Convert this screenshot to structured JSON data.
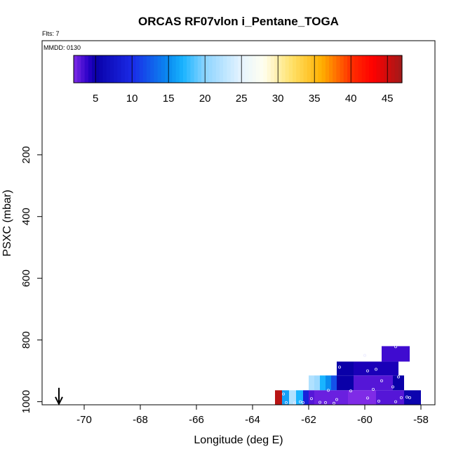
{
  "chart_data": {
    "type": "heatmap",
    "title": "ORCAS RF07vlon i_Pentane_TOGA",
    "annotations": {
      "flts": "Flts: 7",
      "mmdd": "MMDD: 0130"
    },
    "xlabel": "Longitude (deg E)",
    "ylabel": "PSXC (mbar)",
    "xlim": [
      -71.5,
      -57.5
    ],
    "ylim": [
      1010,
      -170
    ],
    "x_ticks": [
      -70,
      -68,
      -66,
      -64,
      -62,
      -60,
      -58
    ],
    "y_ticks": [
      200,
      400,
      600,
      800,
      1000
    ],
    "colorbar": {
      "min": 2,
      "max": 47,
      "ticks": [
        5,
        10,
        15,
        20,
        25,
        30,
        35,
        40,
        45
      ],
      "stops": [
        {
          "v": 2,
          "c": "#7f2be6"
        },
        {
          "v": 4,
          "c": "#2a00c8"
        },
        {
          "v": 5,
          "c": "#0a00a8"
        },
        {
          "v": 10,
          "c": "#1a2ae6"
        },
        {
          "v": 15,
          "c": "#0a8cf0"
        },
        {
          "v": 17,
          "c": "#19b4ff"
        },
        {
          "v": 20,
          "c": "#8cd4ff"
        },
        {
          "v": 25,
          "c": "#e6f4ff"
        },
        {
          "v": 28,
          "c": "#fffff0"
        },
        {
          "v": 32,
          "c": "#ffe066"
        },
        {
          "v": 36,
          "c": "#ffb000"
        },
        {
          "v": 40,
          "c": "#ff3000"
        },
        {
          "v": 43,
          "c": "#ff0000"
        },
        {
          "v": 47,
          "c": "#a01a1a"
        }
      ]
    },
    "cells": [
      {
        "x0": -59.4,
        "x1": -58.4,
        "y0": 820,
        "y1": 870,
        "v": 3.5
      },
      {
        "x0": -61.0,
        "x1": -60.4,
        "y0": 870,
        "y1": 915,
        "v": 5
      },
      {
        "x0": -60.4,
        "x1": -58.8,
        "y0": 870,
        "y1": 915,
        "v": 4.5
      },
      {
        "x0": -61.0,
        "x1": -60.4,
        "y0": 915,
        "y1": 963,
        "v": 5
      },
      {
        "x0": -60.4,
        "x1": -59.0,
        "y0": 915,
        "y1": 963,
        "v": 3
      },
      {
        "x0": -59.0,
        "x1": -58.6,
        "y0": 915,
        "y1": 963,
        "v": 5
      },
      {
        "x0": -62.0,
        "x1": -61.8,
        "y0": 915,
        "y1": 963,
        "v": 22
      },
      {
        "x0": -61.8,
        "x1": -61.6,
        "y0": 915,
        "y1": 963,
        "v": 21
      },
      {
        "x0": -61.6,
        "x1": -61.4,
        "y0": 915,
        "y1": 963,
        "v": 17
      },
      {
        "x0": -61.4,
        "x1": -61.2,
        "y0": 915,
        "y1": 963,
        "v": 15
      },
      {
        "x0": -61.2,
        "x1": -61.0,
        "y0": 915,
        "y1": 963,
        "v": 12
      },
      {
        "x0": -63.2,
        "x1": -62.95,
        "y0": 963,
        "y1": 1010,
        "v": 46
      },
      {
        "x0": -62.95,
        "x1": -62.7,
        "y0": 963,
        "y1": 1010,
        "v": 16
      },
      {
        "x0": -62.7,
        "x1": -62.45,
        "y0": 963,
        "y1": 1010,
        "v": 22
      },
      {
        "x0": -62.45,
        "x1": -62.2,
        "y0": 963,
        "y1": 1010,
        "v": 17
      },
      {
        "x0": -62.2,
        "x1": -62.0,
        "y0": 963,
        "y1": 1010,
        "v": 9
      },
      {
        "x0": -62.0,
        "x1": -61.8,
        "y0": 963,
        "y1": 1010,
        "v": 3
      },
      {
        "x0": -61.8,
        "x1": -60.6,
        "y0": 963,
        "y1": 1010,
        "v": 2.5
      },
      {
        "x0": -60.6,
        "x1": -59.6,
        "y0": 963,
        "y1": 1010,
        "v": 2
      },
      {
        "x0": -59.6,
        "x1": -58.6,
        "y0": 963,
        "y1": 1010,
        "v": 3
      },
      {
        "x0": -58.6,
        "x1": -58.0,
        "y0": 963,
        "y1": 1010,
        "v": 5.5
      }
    ],
    "points": [
      [
        -58.9,
        822
      ],
      [
        -60.0,
        850
      ],
      [
        -59.6,
        895
      ],
      [
        -59.9,
        900
      ],
      [
        -60.9,
        888
      ],
      [
        -59.4,
        932
      ],
      [
        -58.8,
        920
      ],
      [
        -59.0,
        952
      ],
      [
        -60.5,
        965
      ],
      [
        -61.3,
        963
      ],
      [
        -61.9,
        990
      ],
      [
        -62.3,
        1000
      ],
      [
        -62.9,
        975
      ],
      [
        -62.8,
        1003
      ],
      [
        -62.5,
        1004
      ],
      [
        -62.2,
        1003
      ],
      [
        -61.6,
        1002
      ],
      [
        -61.4,
        1003
      ],
      [
        -61.1,
        1005
      ],
      [
        -61.0,
        993
      ],
      [
        -59.9,
        988
      ],
      [
        -59.7,
        960
      ],
      [
        -59.5,
        998
      ],
      [
        -58.7,
        987
      ],
      [
        -58.9,
        1000
      ],
      [
        -58.5,
        985
      ],
      [
        -58.4,
        987
      ]
    ],
    "arrow": {
      "x": -70.9,
      "y_from": 955,
      "y_to": 1005
    }
  }
}
